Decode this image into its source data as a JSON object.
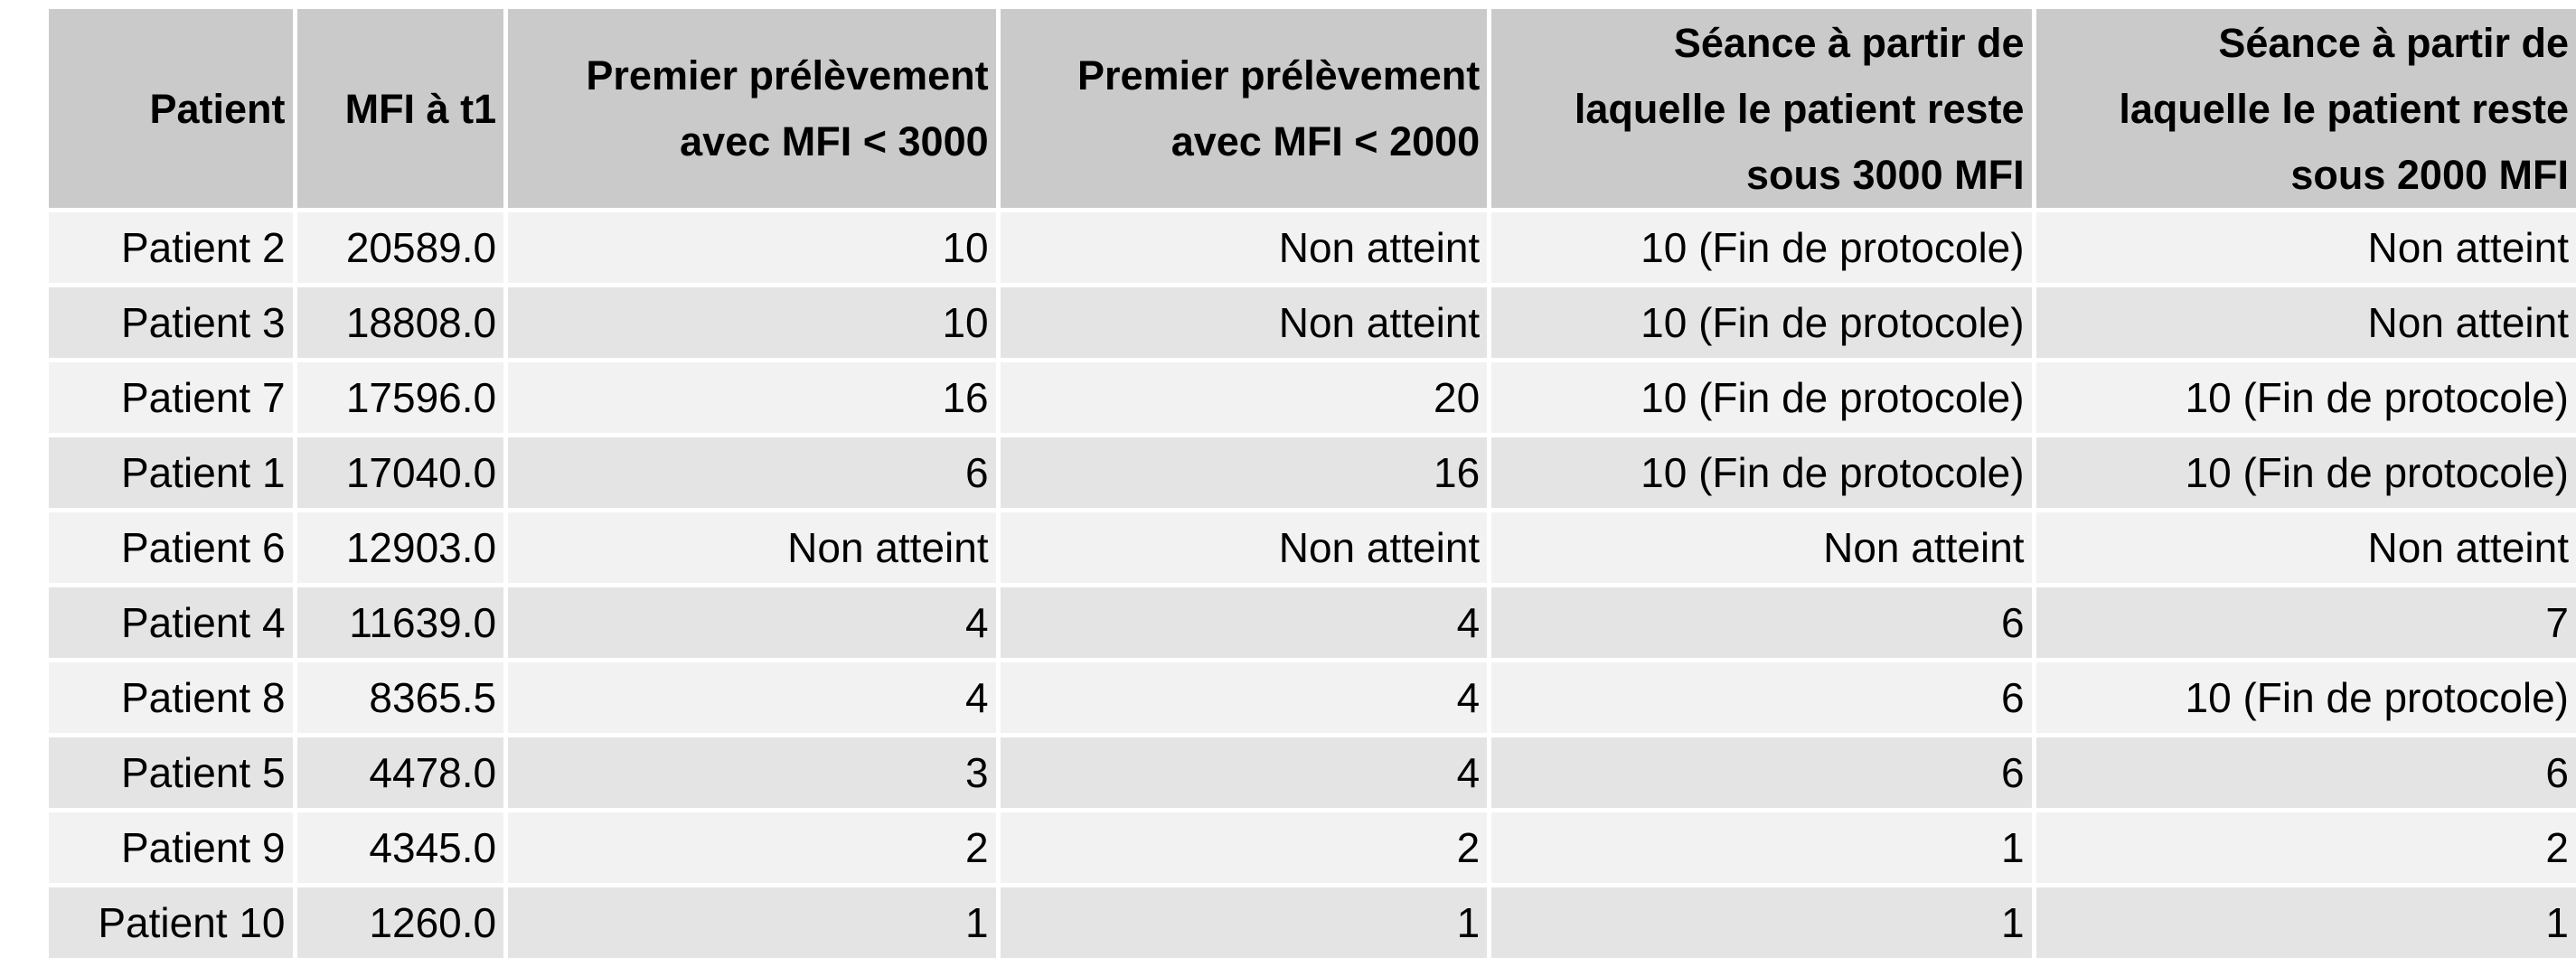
{
  "table": {
    "headers": [
      [
        "Patient"
      ],
      [
        "MFI à t1"
      ],
      [
        "Premier prélèvement",
        "avec MFI < 3000"
      ],
      [
        "Premier prélèvement",
        "avec MFI < 2000"
      ],
      [
        "Séance à partir de",
        "laquelle le patient reste",
        "sous 3000 MFI"
      ],
      [
        "Séance à partir de",
        "laquelle le patient reste",
        "sous 2000 MFI"
      ]
    ],
    "rows": [
      [
        "Patient 2",
        "20589.0",
        "10",
        "Non atteint",
        "10 (Fin de protocole)",
        "Non atteint"
      ],
      [
        "Patient 3",
        "18808.0",
        "10",
        "Non atteint",
        "10 (Fin de protocole)",
        "Non atteint"
      ],
      [
        "Patient 7",
        "17596.0",
        "16",
        "20",
        "10 (Fin de protocole)",
        "10 (Fin de protocole)"
      ],
      [
        "Patient 1",
        "17040.0",
        "6",
        "16",
        "10 (Fin de protocole)",
        "10 (Fin de protocole)"
      ],
      [
        "Patient 6",
        "12903.0",
        "Non atteint",
        "Non atteint",
        "Non atteint",
        "Non atteint"
      ],
      [
        "Patient 4",
        "11639.0",
        "4",
        "4",
        "6",
        "7"
      ],
      [
        "Patient 8",
        "8365.5",
        "4",
        "4",
        "6",
        "10 (Fin de protocole)"
      ],
      [
        "Patient 5",
        "4478.0",
        "3",
        "4",
        "6",
        "6"
      ],
      [
        "Patient 9",
        "4345.0",
        "2",
        "2",
        "1",
        "2"
      ],
      [
        "Patient 10",
        "1260.0",
        "1",
        "1",
        "1",
        "1"
      ]
    ]
  }
}
